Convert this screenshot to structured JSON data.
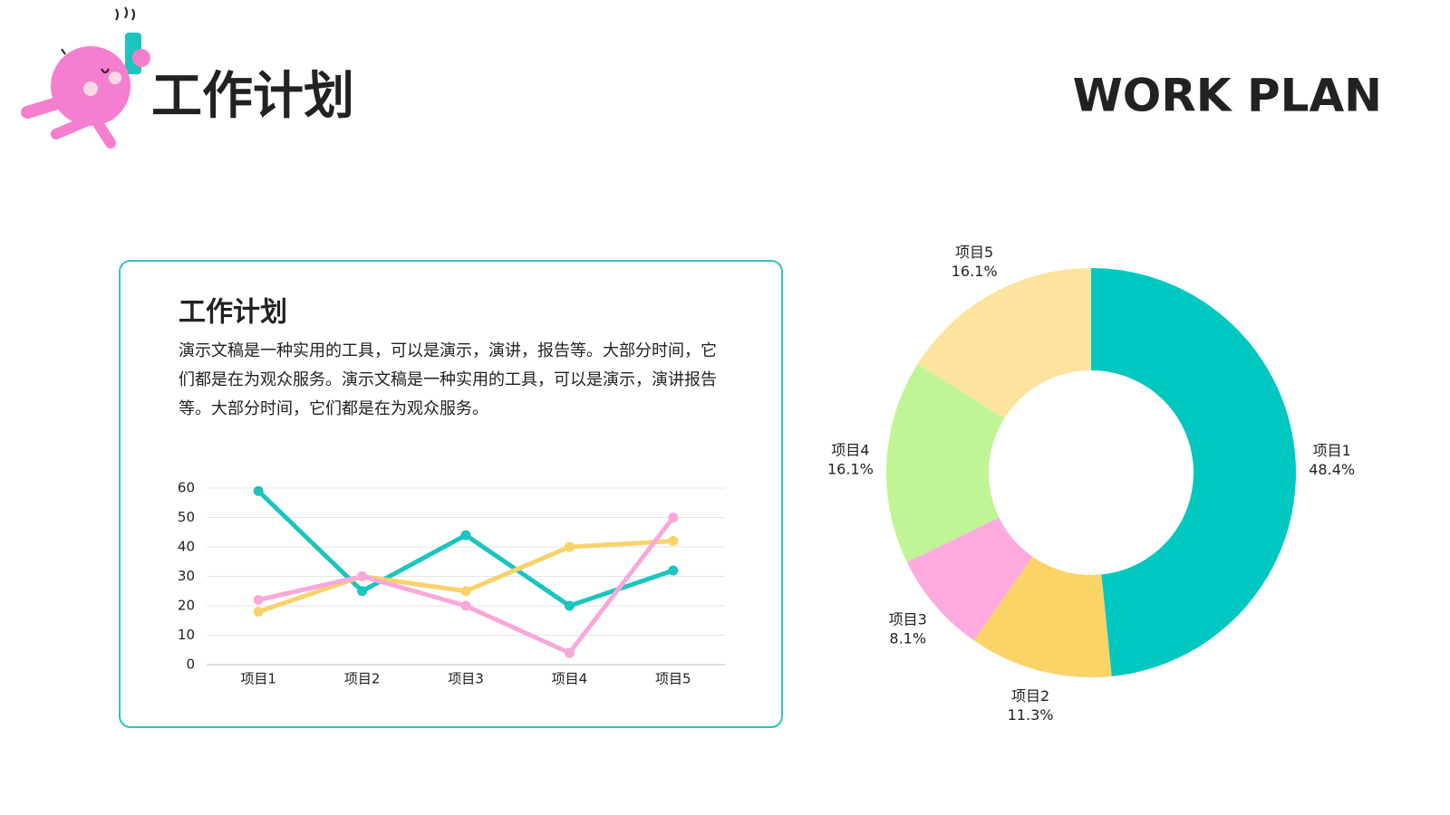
{
  "header": {
    "title": "工作计划",
    "subtitle": "WORK PLAN"
  },
  "card": {
    "title": "工作计划",
    "text": "演示文稿是一种实用的工具，可以是演示，演讲，报告等。大部分时间，它们都是在为观众服务。演示文稿是一种实用的工具，可以是演示，演讲报告等。大部分时间，它们都是在为观众服务。"
  },
  "chart_data": [
    {
      "type": "line",
      "categories": [
        "项目1",
        "项目2",
        "项目3",
        "项目4",
        "项目5"
      ],
      "series": [
        {
          "color": "#1cc4bf",
          "values": [
            59,
            25,
            44,
            20,
            32
          ]
        },
        {
          "color": "#f9d26a",
          "values": [
            18,
            30,
            25,
            40,
            42
          ]
        },
        {
          "color": "#f8a9da",
          "values": [
            22,
            30,
            20,
            4,
            50
          ]
        }
      ],
      "ylim": [
        0,
        60
      ],
      "yticks": [
        0,
        10,
        20,
        30,
        40,
        50,
        60
      ],
      "grid": true
    },
    {
      "type": "pie",
      "categories": [
        "项目1",
        "项目2",
        "项目3",
        "项目4",
        "项目5"
      ],
      "values": [
        48.4,
        11.3,
        8.1,
        16.1,
        16.1
      ],
      "value_labels": [
        "48.4%",
        "11.3%",
        "8.1%",
        "16.1%",
        "16.1%"
      ],
      "colors": [
        "#00c8c0",
        "#fbd468",
        "#ffaadf",
        "#c0f596",
        "#fce49e"
      ]
    }
  ]
}
